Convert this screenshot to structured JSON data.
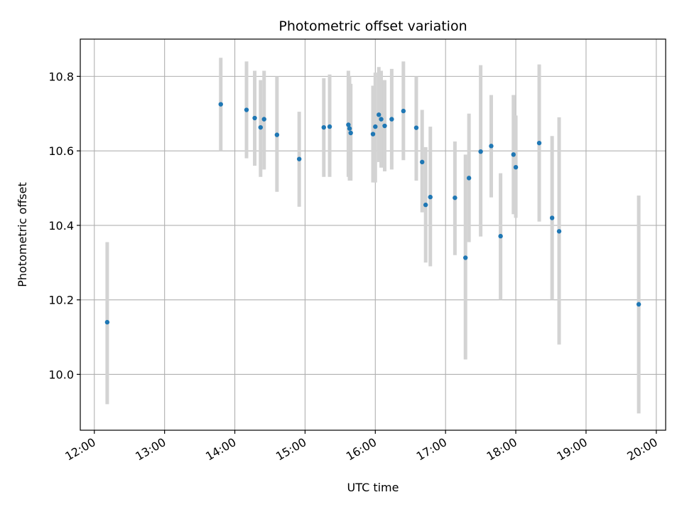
{
  "chart_data": {
    "type": "scatter",
    "title": "Photometric offset variation",
    "xlabel": "UTC time",
    "ylabel": "Photometric offset",
    "grid": true,
    "xlim": [
      "11:48",
      "20:08"
    ],
    "ylim": [
      9.85,
      10.9
    ],
    "x_ticks": [
      "12:00",
      "13:00",
      "14:00",
      "15:00",
      "16:00",
      "17:00",
      "18:00",
      "19:00",
      "20:00"
    ],
    "y_ticks": [
      10.0,
      10.2,
      10.4,
      10.6,
      10.8
    ],
    "y_tick_labels": [
      "10.0",
      "10.2",
      "10.4",
      "10.6",
      "10.8"
    ],
    "colors": {
      "point": "#1f77b4",
      "errorbar": "#d3d3d3",
      "grid": "#b0b0b0"
    },
    "points": [
      {
        "x": "12:11",
        "y": 10.14,
        "ylow": 9.92,
        "yhigh": 10.355
      },
      {
        "x": "13:48",
        "y": 10.725,
        "ylow": 10.6,
        "yhigh": 10.85
      },
      {
        "x": "14:10",
        "y": 10.71,
        "ylow": 10.58,
        "yhigh": 10.84
      },
      {
        "x": "14:17",
        "y": 10.688,
        "ylow": 10.56,
        "yhigh": 10.815
      },
      {
        "x": "14:22",
        "y": 10.663,
        "ylow": 10.53,
        "yhigh": 10.79
      },
      {
        "x": "14:25",
        "y": 10.685,
        "ylow": 10.55,
        "yhigh": 10.815
      },
      {
        "x": "14:36",
        "y": 10.643,
        "ylow": 10.49,
        "yhigh": 10.8
      },
      {
        "x": "14:55",
        "y": 10.578,
        "ylow": 10.45,
        "yhigh": 10.705
      },
      {
        "x": "15:16",
        "y": 10.663,
        "ylow": 10.53,
        "yhigh": 10.795
      },
      {
        "x": "15:21",
        "y": 10.665,
        "ylow": 10.53,
        "yhigh": 10.805
      },
      {
        "x": "15:37",
        "y": 10.67,
        "ylow": 10.53,
        "yhigh": 10.815
      },
      {
        "x": "15:38",
        "y": 10.66,
        "ylow": 10.52,
        "yhigh": 10.8
      },
      {
        "x": "15:39",
        "y": 10.648,
        "ylow": 10.52,
        "yhigh": 10.78
      },
      {
        "x": "15:58",
        "y": 10.645,
        "ylow": 10.515,
        "yhigh": 10.775
      },
      {
        "x": "16:00",
        "y": 10.665,
        "ylow": 10.515,
        "yhigh": 10.81
      },
      {
        "x": "16:03",
        "y": 10.697,
        "ylow": 10.57,
        "yhigh": 10.825
      },
      {
        "x": "16:05",
        "y": 10.685,
        "ylow": 10.555,
        "yhigh": 10.815
      },
      {
        "x": "16:08",
        "y": 10.667,
        "ylow": 10.545,
        "yhigh": 10.79
      },
      {
        "x": "16:14",
        "y": 10.685,
        "ylow": 10.55,
        "yhigh": 10.82
      },
      {
        "x": "16:24",
        "y": 10.707,
        "ylow": 10.575,
        "yhigh": 10.84
      },
      {
        "x": "16:35",
        "y": 10.662,
        "ylow": 10.52,
        "yhigh": 10.8
      },
      {
        "x": "16:40",
        "y": 10.57,
        "ylow": 10.435,
        "yhigh": 10.71
      },
      {
        "x": "16:43",
        "y": 10.455,
        "ylow": 10.3,
        "yhigh": 10.61
      },
      {
        "x": "16:47",
        "y": 10.476,
        "ylow": 10.29,
        "yhigh": 10.665
      },
      {
        "x": "17:08",
        "y": 10.474,
        "ylow": 10.32,
        "yhigh": 10.625
      },
      {
        "x": "17:17",
        "y": 10.313,
        "ylow": 10.04,
        "yhigh": 10.59
      },
      {
        "x": "17:20",
        "y": 10.527,
        "ylow": 10.355,
        "yhigh": 10.7
      },
      {
        "x": "17:30",
        "y": 10.598,
        "ylow": 10.37,
        "yhigh": 10.83
      },
      {
        "x": "17:39",
        "y": 10.613,
        "ylow": 10.475,
        "yhigh": 10.75
      },
      {
        "x": "17:47",
        "y": 10.371,
        "ylow": 10.2,
        "yhigh": 10.54
      },
      {
        "x": "17:58",
        "y": 10.59,
        "ylow": 10.43,
        "yhigh": 10.75
      },
      {
        "x": "18:00",
        "y": 10.556,
        "ylow": 10.42,
        "yhigh": 10.695
      },
      {
        "x": "18:20",
        "y": 10.621,
        "ylow": 10.41,
        "yhigh": 10.832
      },
      {
        "x": "18:31",
        "y": 10.42,
        "ylow": 10.2,
        "yhigh": 10.64
      },
      {
        "x": "18:37",
        "y": 10.384,
        "ylow": 10.08,
        "yhigh": 10.69
      },
      {
        "x": "19:45",
        "y": 10.188,
        "ylow": 9.895,
        "yhigh": 10.48
      }
    ]
  }
}
